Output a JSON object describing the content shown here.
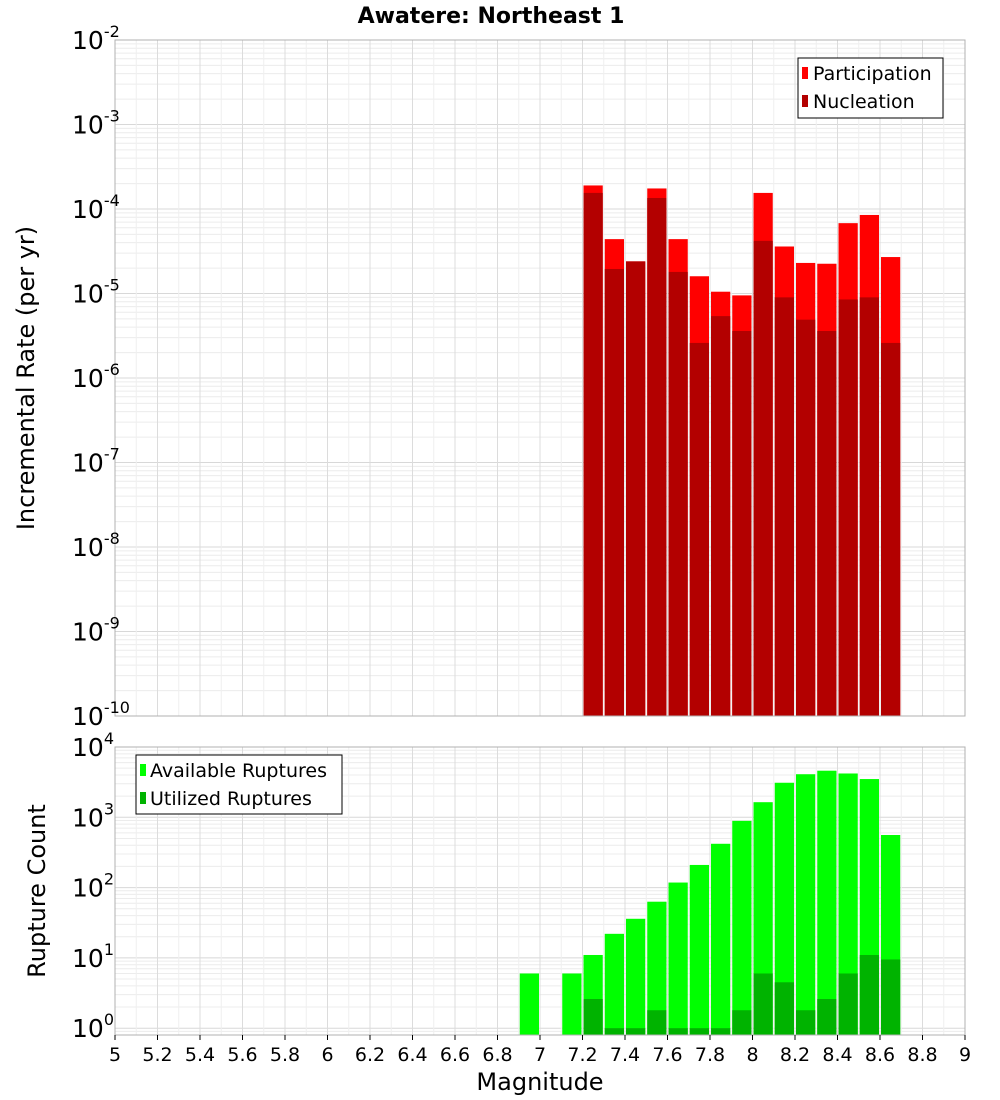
{
  "chart_data": [
    {
      "type": "bar",
      "title": "Awatere: Northeast 1",
      "xlabel": "Magnitude",
      "ylabel": "Incremental Rate (per yr)",
      "yscale": "log",
      "ylim": [
        1e-10,
        0.01
      ],
      "xlim": [
        5,
        9
      ],
      "grid": true,
      "legend_position": "top-right",
      "colors": {
        "participation": "#ff0000",
        "nucleation": "#b30000"
      },
      "legend": [
        "Participation",
        "Nucleation"
      ],
      "x": [
        7.25,
        7.35,
        7.45,
        7.55,
        7.65,
        7.75,
        7.85,
        7.95,
        8.05,
        8.15,
        8.25,
        8.35,
        8.45,
        8.55,
        8.65
      ],
      "series": [
        {
          "name": "Participation",
          "values": [
            0.00019,
            4.4e-05,
            2.4e-05,
            0.000175,
            4.4e-05,
            1.6e-05,
            1.05e-05,
            9.5e-06,
            0.000155,
            3.6e-05,
            2.3e-05,
            2.25e-05,
            6.8e-05,
            8.5e-05,
            2.7e-05
          ]
        },
        {
          "name": "Nucleation",
          "values": [
            0.000155,
            1.95e-05,
            2.4e-05,
            0.000135,
            1.8e-05,
            2.6e-06,
            5.4e-06,
            3.6e-06,
            4.2e-05,
            9e-06,
            4.9e-06,
            3.6e-06,
            8.5e-06,
            9e-06,
            2.6e-06
          ]
        }
      ]
    },
    {
      "type": "bar",
      "xlabel": "Magnitude",
      "ylabel": "Rupture Count",
      "yscale": "log",
      "ylim": [
        0.8,
        10000
      ],
      "xlim": [
        5,
        9
      ],
      "grid": true,
      "legend_position": "top-left",
      "colors": {
        "available": "#00ff00",
        "utilized": "#00b300"
      },
      "legend": [
        "Available Ruptures",
        "Utilized Ruptures"
      ],
      "x": [
        6.95,
        7.15,
        7.25,
        7.35,
        7.45,
        7.55,
        7.65,
        7.75,
        7.85,
        7.95,
        8.05,
        8.15,
        8.25,
        8.35,
        8.45,
        8.55,
        8.65
      ],
      "series": [
        {
          "name": "Available Ruptures",
          "values": [
            6,
            6,
            11,
            22,
            36,
            63,
            118,
            210,
            420,
            890,
            1640,
            3100,
            4100,
            4600,
            4200,
            3500,
            560
          ]
        },
        {
          "name": "Utilized Ruptures",
          "values": [
            null,
            null,
            2.6,
            1,
            1,
            1.8,
            1,
            1,
            1,
            1.8,
            6,
            4.5,
            1.8,
            2.6,
            6,
            11,
            9.5
          ]
        }
      ]
    }
  ],
  "x_ticks": [
    "5",
    "5.2",
    "5.4",
    "5.6",
    "5.8",
    "6",
    "6.2",
    "6.4",
    "6.6",
    "6.8",
    "7",
    "7.2",
    "7.4",
    "7.6",
    "7.8",
    "8",
    "8.2",
    "8.4",
    "8.6",
    "8.8",
    "9"
  ],
  "top_y_ticks": [
    {
      "base": "10",
      "exp": "-10"
    },
    {
      "base": "10",
      "exp": "-9"
    },
    {
      "base": "10",
      "exp": "-8"
    },
    {
      "base": "10",
      "exp": "-7"
    },
    {
      "base": "10",
      "exp": "-6"
    },
    {
      "base": "10",
      "exp": "-5"
    },
    {
      "base": "10",
      "exp": "-4"
    },
    {
      "base": "10",
      "exp": "-3"
    },
    {
      "base": "10",
      "exp": "-2"
    }
  ],
  "bottom_y_ticks": [
    {
      "base": "10",
      "exp": "0"
    },
    {
      "base": "10",
      "exp": "1"
    },
    {
      "base": "10",
      "exp": "2"
    },
    {
      "base": "10",
      "exp": "3"
    },
    {
      "base": "10",
      "exp": "4"
    }
  ]
}
